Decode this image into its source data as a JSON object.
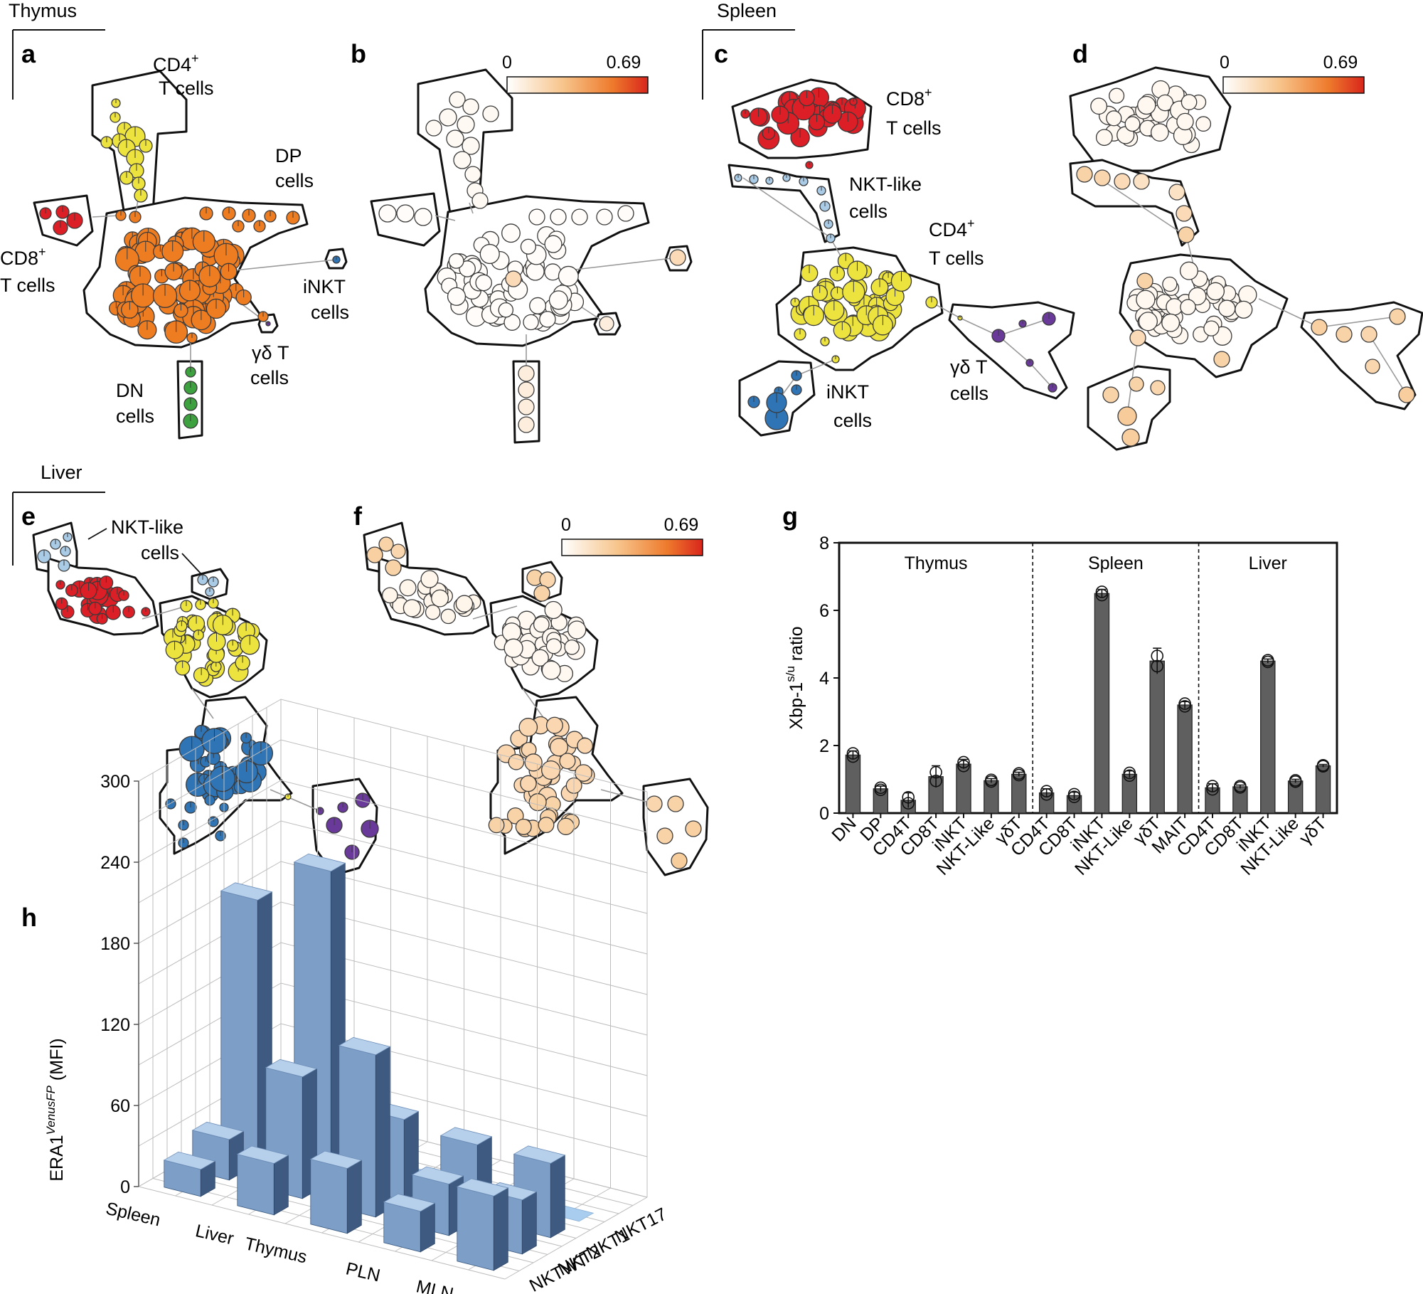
{
  "tissues": {
    "thymus": "Thymus",
    "spleen": "Spleen",
    "liver": "Liver"
  },
  "panel_labels": {
    "a": "a",
    "b": "b",
    "c": "c",
    "d": "d",
    "e": "e",
    "f": "f",
    "g": "g",
    "h": "h"
  },
  "colorbar": {
    "min": "0",
    "max": "0.69",
    "colors": [
      "#ffffff",
      "#f7c48b",
      "#ee7a2c",
      "#d9261c"
    ]
  },
  "panel_a": {
    "cd4_l1": "CD4",
    "cd4_sup": "+",
    "cd4_l2": "T cells",
    "dp_l1": "DP",
    "dp_l2": "cells",
    "cd8_l1": "CD8",
    "cd8_sup": "+",
    "cd8_l2": "T cells",
    "inkt_l1": "iNKT",
    "inkt_l2": "cells",
    "gd_l1": "γδ T",
    "gd_l2": "cells",
    "dn_l1": "DN",
    "dn_l2": "cells"
  },
  "panel_c": {
    "cd8_l1": "CD8",
    "cd8_sup": "+",
    "cd8_l2": "T cells",
    "nktlike_l1": "NKT-like",
    "nktlike_l2": "cells",
    "cd4_l1": "CD4",
    "cd4_sup": "+",
    "cd4_l2": "T cells",
    "gd_l1": "γδ T",
    "gd_l2": "cells",
    "inkt_l1": "iNKT",
    "inkt_l2": "cells"
  },
  "panel_e": {
    "nktlike_l1": "NKT-like",
    "nktlike_l2": "cells"
  },
  "population_colors": {
    "cd4": "#ede33f",
    "dp": "#ee7d22",
    "cd8": "#dc1f26",
    "inkt": "#2f74b5",
    "gd": "#6a3a9a",
    "dn": "#3ea13f",
    "nktlike": "#a9cbe6"
  },
  "chart_data": [
    {
      "panel": "g",
      "type": "bar",
      "ylabel": "Xbp-1",
      "ylabel_sup": "s/u",
      "ylabel_tail": " ratio",
      "ylim": [
        0,
        8
      ],
      "yticks": [
        "0",
        "2",
        "4",
        "6",
        "8"
      ],
      "groups": [
        {
          "name": "Thymus",
          "categories": [
            "DN",
            "DP",
            "CD4T",
            "CD8T",
            "iNKT",
            "NKT-Like",
            "γδT"
          ],
          "values": [
            1.72,
            0.72,
            0.38,
            1.08,
            1.45,
            0.96,
            1.15
          ],
          "errors": [
            0.12,
            0.08,
            0.22,
            0.32,
            0.14,
            0.06,
            0.06
          ]
        },
        {
          "name": "Spleen",
          "categories": [
            "CD4T",
            "CD8T",
            "iNKT",
            "NKT-Like",
            "γδT",
            "MAIT"
          ],
          "values": [
            0.6,
            0.52,
            6.5,
            1.15,
            4.5,
            3.2
          ],
          "errors": [
            0.12,
            0.1,
            0.12,
            0.1,
            0.38,
            0.1
          ]
        },
        {
          "name": "Liver",
          "categories": [
            "CD4T",
            "CD8T",
            "iNKT",
            "NKT-Like",
            "γδT"
          ],
          "values": [
            0.75,
            0.78,
            4.5,
            0.95,
            1.4
          ],
          "errors": [
            0.12,
            0.05,
            0.06,
            0.05,
            0.04
          ]
        }
      ]
    },
    {
      "panel": "h",
      "type": "bar3d",
      "zlabel": "ERA1",
      "zlabel_sup": "VenusFP",
      "zlabel_tail": " (MFI)",
      "zlim": [
        0,
        300
      ],
      "zticks": [
        "0",
        "60",
        "120",
        "180",
        "240",
        "300"
      ],
      "tissues": [
        "Spleen",
        "Liver",
        "Thymus",
        "PLN",
        "MLN"
      ],
      "populations": [
        "NKTWT",
        "NKT2",
        "NKT1",
        "NKT17"
      ],
      "values": {
        "NKTWT": [
          20,
          38,
          48,
          30,
          55
        ],
        "NKT2": [
          30,
          90,
          120,
          38,
          40
        ],
        "NKT1": [
          195,
          230,
          60,
          55,
          55
        ],
        "NKT17": [
          3,
          3,
          3,
          3,
          3
        ]
      }
    }
  ]
}
